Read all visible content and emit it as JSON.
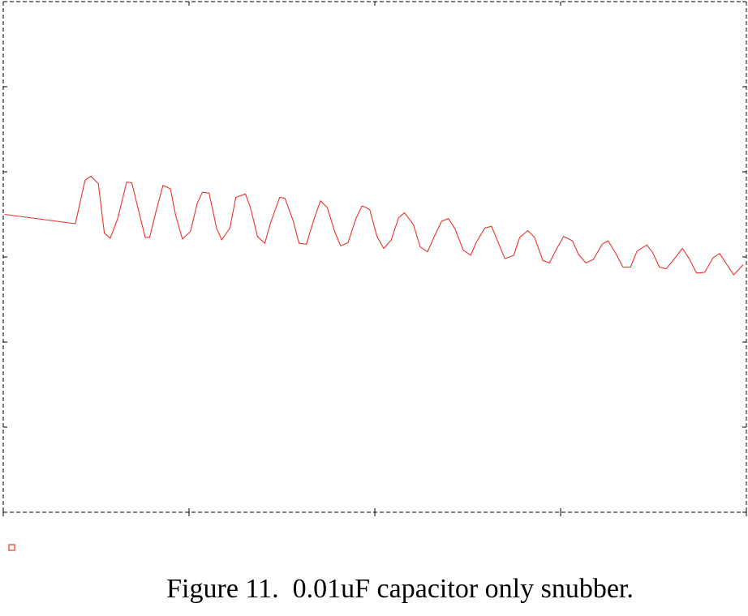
{
  "figure": {
    "caption": "Figure 11.  0.01uF capacitor only snubber."
  },
  "chart_data": {
    "type": "line",
    "title": "",
    "xlabel": "",
    "ylabel": "",
    "xlim": [
      0,
      100
    ],
    "ylim": [
      0,
      6
    ],
    "grid": false,
    "frame_style": "dashed",
    "x_ticks": [
      0,
      25,
      50,
      75,
      100
    ],
    "y_ticks": [
      0,
      1,
      2,
      3,
      4,
      5,
      6
    ],
    "colors": {
      "series": "#e8332b",
      "frame": "#000000"
    },
    "legend_marker": {
      "shape": "hollow-square",
      "color": "#e8332b",
      "label": ""
    },
    "series": [
      {
        "name": "",
        "color": "#e8332b",
        "x": [
          0.2,
          9.7,
          11.0,
          11.8,
          12.8,
          13.6,
          14.4,
          15.4,
          16.6,
          17.3,
          18.2,
          19.1,
          19.7,
          20.6,
          21.5,
          22.5,
          23.2,
          24.1,
          25.2,
          26.1,
          26.8,
          27.7,
          28.7,
          29.4,
          30.5,
          31.3,
          32.6,
          33.3,
          34.2,
          35.2,
          36.0,
          37.2,
          37.9,
          39.0,
          39.8,
          40.8,
          41.8,
          42.7,
          43.6,
          44.6,
          45.4,
          46.4,
          47.5,
          48.3,
          49.3,
          50.3,
          51.2,
          52.2,
          53.2,
          54.0,
          55.2,
          56.1,
          57.1,
          58.0,
          59.0,
          59.9,
          60.8,
          61.9,
          62.9,
          63.7,
          64.8,
          65.7,
          66.7,
          67.5,
          68.7,
          69.5,
          70.6,
          71.5,
          72.6,
          73.5,
          74.5,
          75.4,
          76.6,
          77.4,
          78.4,
          79.4,
          80.6,
          81.4,
          82.5,
          83.4,
          84.4,
          85.3,
          86.6,
          87.4,
          88.3,
          89.2,
          90.5,
          91.4,
          92.3,
          93.3,
          94.4,
          95.5,
          96.4,
          97.3,
          98.3,
          99.6
        ],
        "y": [
          3.5,
          3.39,
          3.9,
          3.95,
          3.86,
          3.28,
          3.22,
          3.45,
          3.88,
          3.87,
          3.55,
          3.23,
          3.23,
          3.55,
          3.84,
          3.8,
          3.49,
          3.21,
          3.3,
          3.63,
          3.76,
          3.75,
          3.34,
          3.2,
          3.34,
          3.7,
          3.74,
          3.57,
          3.24,
          3.16,
          3.41,
          3.7,
          3.69,
          3.43,
          3.16,
          3.15,
          3.44,
          3.66,
          3.58,
          3.3,
          3.13,
          3.17,
          3.46,
          3.6,
          3.56,
          3.24,
          3.1,
          3.2,
          3.46,
          3.52,
          3.38,
          3.12,
          3.06,
          3.24,
          3.42,
          3.45,
          3.33,
          3.08,
          3.02,
          3.18,
          3.34,
          3.36,
          3.15,
          2.98,
          3.02,
          3.23,
          3.31,
          3.23,
          2.96,
          2.93,
          3.1,
          3.24,
          3.19,
          3.03,
          2.93,
          2.97,
          3.15,
          3.19,
          3.03,
          2.88,
          2.88,
          3.07,
          3.14,
          3.05,
          2.88,
          2.86,
          3.0,
          3.1,
          2.98,
          2.81,
          2.82,
          2.99,
          3.04,
          2.92,
          2.79,
          2.91
        ]
      }
    ]
  }
}
